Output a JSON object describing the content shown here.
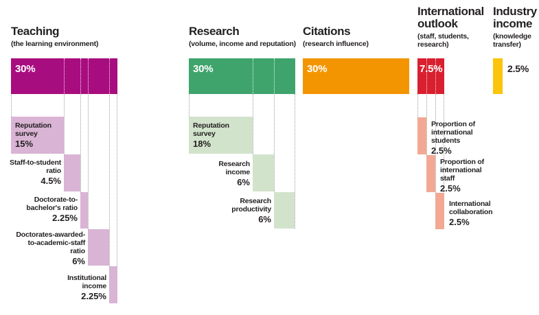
{
  "colors": {
    "teaching": "#a80d7f",
    "teaching_light": "#d9b4d4",
    "research": "#3fa46c",
    "research_light": "#d2e3cc",
    "citations": "#f39500",
    "international": "#d8202f",
    "international_light": "#f2a893",
    "industry": "#fcc40a",
    "text": "#231f20"
  },
  "chart_data": {
    "type": "bar",
    "layout": "waterfall-breakdown, five weighted pillars with sub-metric bars, dotted guide lines",
    "unit": "percent weighting",
    "sections": [
      {
        "title": "Teaching",
        "subtitle": "(the learning environment)",
        "weight": 30,
        "weight_label": "30%",
        "color": "#a80d7f",
        "sub_color": "#d9b4d4",
        "sub_metrics": [
          {
            "label": "Reputation survey",
            "lines": [
              "Reputation",
              "survey"
            ],
            "value": 15,
            "value_label": "15%"
          },
          {
            "label": "Staff-to-student ratio",
            "lines": [
              "Staff-to-student",
              "ratio"
            ],
            "value": 4.5,
            "value_label": "4.5%"
          },
          {
            "label": "Doctorate-to-bachelor's ratio",
            "lines": [
              "Doctorate-to-",
              "bachelor's ratio"
            ],
            "value": 2.25,
            "value_label": "2.25%"
          },
          {
            "label": "Doctorates-awarded-to-academic-staff ratio",
            "lines": [
              "Doctorates-awarded-",
              "to-academic-staff",
              "ratio"
            ],
            "value": 6,
            "value_label": "6%"
          },
          {
            "label": "Institutional income",
            "lines": [
              "Institutional",
              "income"
            ],
            "value": 2.25,
            "value_label": "2.25%"
          }
        ]
      },
      {
        "title": "Research",
        "subtitle": "(volume, income and reputation)",
        "weight": 30,
        "weight_label": "30%",
        "color": "#3fa46c",
        "sub_color": "#d2e3cc",
        "sub_metrics": [
          {
            "label": "Reputation survey",
            "lines": [
              "Reputation",
              "survey"
            ],
            "value": 18,
            "value_label": "18%"
          },
          {
            "label": "Research income",
            "lines": [
              "Research",
              "income"
            ],
            "value": 6,
            "value_label": "6%"
          },
          {
            "label": "Research productivity",
            "lines": [
              "Research",
              "productivity"
            ],
            "value": 6,
            "value_label": "6%"
          }
        ]
      },
      {
        "title": "Citations",
        "subtitle": "(research influence)",
        "weight": 30,
        "weight_label": "30%",
        "color": "#f39500",
        "sub_metrics": []
      },
      {
        "title": "International outlook",
        "title_lines": [
          "International",
          "outlook"
        ],
        "subtitle": "(staff, students, research)",
        "subtitle_lines": [
          "(staff, students,",
          "research)"
        ],
        "weight": 7.5,
        "weight_label": "7.5%",
        "color": "#d8202f",
        "sub_color": "#f2a893",
        "sub_metrics": [
          {
            "label": "Proportion of international students",
            "lines": [
              "Proportion of",
              "international",
              "students"
            ],
            "value": 2.5,
            "value_label": "2.5%"
          },
          {
            "label": "Proportion of international staff",
            "lines": [
              "Proportion of",
              "international",
              "staff"
            ],
            "value": 2.5,
            "value_label": "2.5%"
          },
          {
            "label": "International collaboration",
            "lines": [
              "International",
              "collaboration"
            ],
            "value": 2.5,
            "value_label": "2.5%"
          }
        ]
      },
      {
        "title": "Industry income",
        "title_lines": [
          "Industry",
          "income"
        ],
        "subtitle": "(knowledge transfer)",
        "subtitle_lines": [
          "(knowledge",
          "transfer)"
        ],
        "weight": 2.5,
        "weight_label": "2.5%",
        "color": "#fcc40a",
        "sub_metrics": []
      }
    ]
  }
}
